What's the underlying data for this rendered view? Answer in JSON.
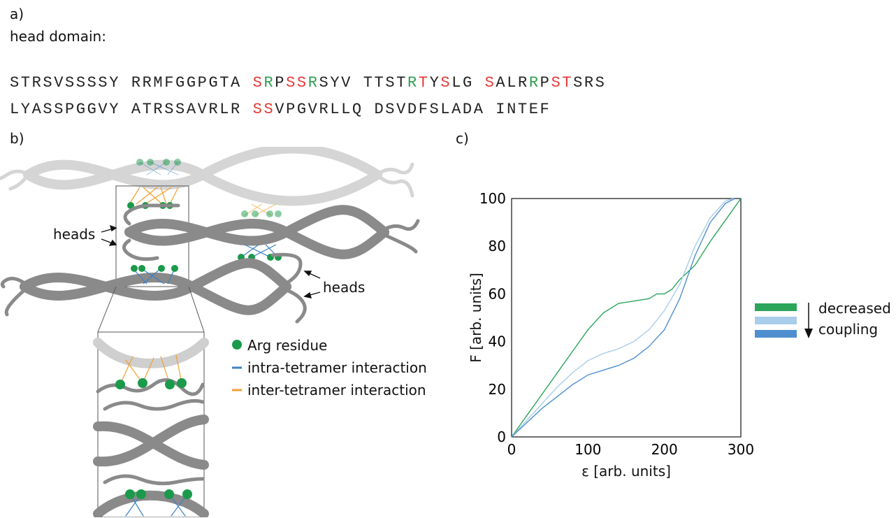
{
  "panel_a": {
    "label": "a)",
    "title": "head domain:",
    "line1": [
      {
        "t": "STRSVSSSSY RRMFGGPGTA ",
        "c": ""
      },
      {
        "t": "S",
        "c": "r"
      },
      {
        "t": "R",
        "c": "g"
      },
      {
        "t": "P",
        "c": ""
      },
      {
        "t": "SS",
        "c": "r"
      },
      {
        "t": "R",
        "c": "g"
      },
      {
        "t": "SYV TTST",
        "c": ""
      },
      {
        "t": "R",
        "c": "g"
      },
      {
        "t": "T",
        "c": "r"
      },
      {
        "t": "Y",
        "c": ""
      },
      {
        "t": "S",
        "c": "r"
      },
      {
        "t": "LG ",
        "c": ""
      },
      {
        "t": "S",
        "c": "r"
      },
      {
        "t": "ALR",
        "c": ""
      },
      {
        "t": "R",
        "c": "g"
      },
      {
        "t": "P",
        "c": ""
      },
      {
        "t": "ST",
        "c": "r"
      },
      {
        "t": "SRS",
        "c": ""
      }
    ],
    "line2": [
      {
        "t": "LYASSPGGVY ATRSSAVRLR ",
        "c": ""
      },
      {
        "t": "SS",
        "c": "r"
      },
      {
        "t": "VPGVRLLQ DSVDFSLADA INTEF",
        "c": ""
      }
    ]
  },
  "panel_b": {
    "label": "b)",
    "heads_label_1": "heads",
    "heads_label_2": "heads",
    "legend": [
      {
        "label": "Arg residue",
        "color": "#1a9a4a",
        "kind": "dot"
      },
      {
        "label": "intra-tetramer interaction",
        "color": "#3b82c4",
        "kind": "line"
      },
      {
        "label": "inter-tetramer interaction",
        "color": "#f0a030",
        "kind": "line"
      }
    ]
  },
  "panel_c": {
    "label": "c)",
    "legend_text_1": "decreased",
    "legend_text_2": "coupling",
    "colors": {
      "dark_green": "#2aa55a",
      "light_blue": "#a9cdea",
      "mid_blue": "#4f8fcf"
    }
  },
  "chart_data": {
    "type": "line",
    "xlabel": "ε [arb. units]",
    "ylabel": "F [arb. units]",
    "xlim": [
      0,
      300
    ],
    "ylim": [
      0,
      100
    ],
    "xticks": [
      0,
      100,
      200,
      300
    ],
    "yticks": [
      0,
      20,
      40,
      60,
      80,
      100
    ],
    "grid": false,
    "series": [
      {
        "color": "#2aa55a",
        "x": [
          0,
          20,
          40,
          60,
          80,
          100,
          120,
          140,
          160,
          180,
          190,
          200,
          210,
          220,
          240,
          260,
          280,
          300
        ],
        "y": [
          0,
          9,
          18,
          27,
          36,
          45,
          52,
          56,
          57,
          58,
          60,
          60,
          62,
          66,
          72,
          82,
          91,
          100
        ]
      },
      {
        "color": "#a9cdea",
        "x": [
          0,
          20,
          40,
          60,
          80,
          100,
          120,
          140,
          160,
          180,
          200,
          220,
          240,
          260,
          280,
          290
        ],
        "y": [
          0,
          7,
          14,
          21,
          27,
          32,
          35,
          37,
          40,
          45,
          53,
          64,
          80,
          92,
          99,
          100
        ]
      },
      {
        "color": "#4f8fcf",
        "x": [
          0,
          20,
          40,
          60,
          80,
          100,
          120,
          140,
          160,
          180,
          200,
          220,
          240,
          260,
          280,
          292
        ],
        "y": [
          0,
          6,
          12,
          17,
          22,
          26,
          28,
          30,
          33,
          38,
          45,
          58,
          76,
          90,
          98,
          100
        ]
      }
    ]
  }
}
